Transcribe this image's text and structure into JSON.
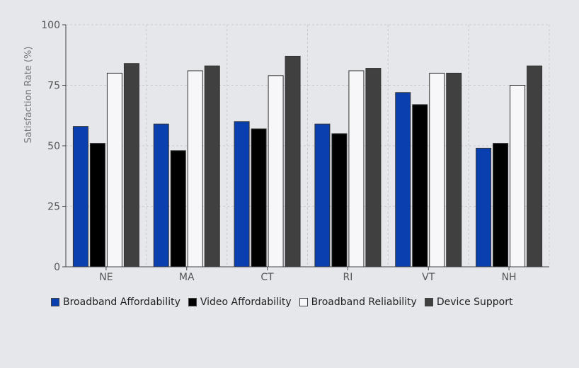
{
  "chart_data": {
    "type": "bar",
    "title": "",
    "xlabel": "",
    "ylabel": "Satisfaction Rate (%)",
    "ylim": [
      0,
      100
    ],
    "yticks": [
      "0",
      "25",
      "50",
      "75",
      "100"
    ],
    "grid": true,
    "legend_position": "bottom",
    "categories": [
      "NE",
      "MA",
      "CT",
      "RI",
      "VT",
      "NH"
    ],
    "series": [
      {
        "name": "Broadband Affordability",
        "color": "#0a3fb0",
        "values": [
          58,
          59,
          60,
          59,
          72,
          49
        ]
      },
      {
        "name": "Video Affordability",
        "color": "#000000",
        "values": [
          51,
          48,
          57,
          55,
          67,
          51
        ]
      },
      {
        "name": "Broadband Reliability",
        "color": "#f7f7f9",
        "values": [
          80,
          81,
          79,
          81,
          80,
          75
        ]
      },
      {
        "name": "Device Support",
        "color": "#404040",
        "values": [
          84,
          83,
          87,
          82,
          80,
          83
        ]
      }
    ]
  }
}
